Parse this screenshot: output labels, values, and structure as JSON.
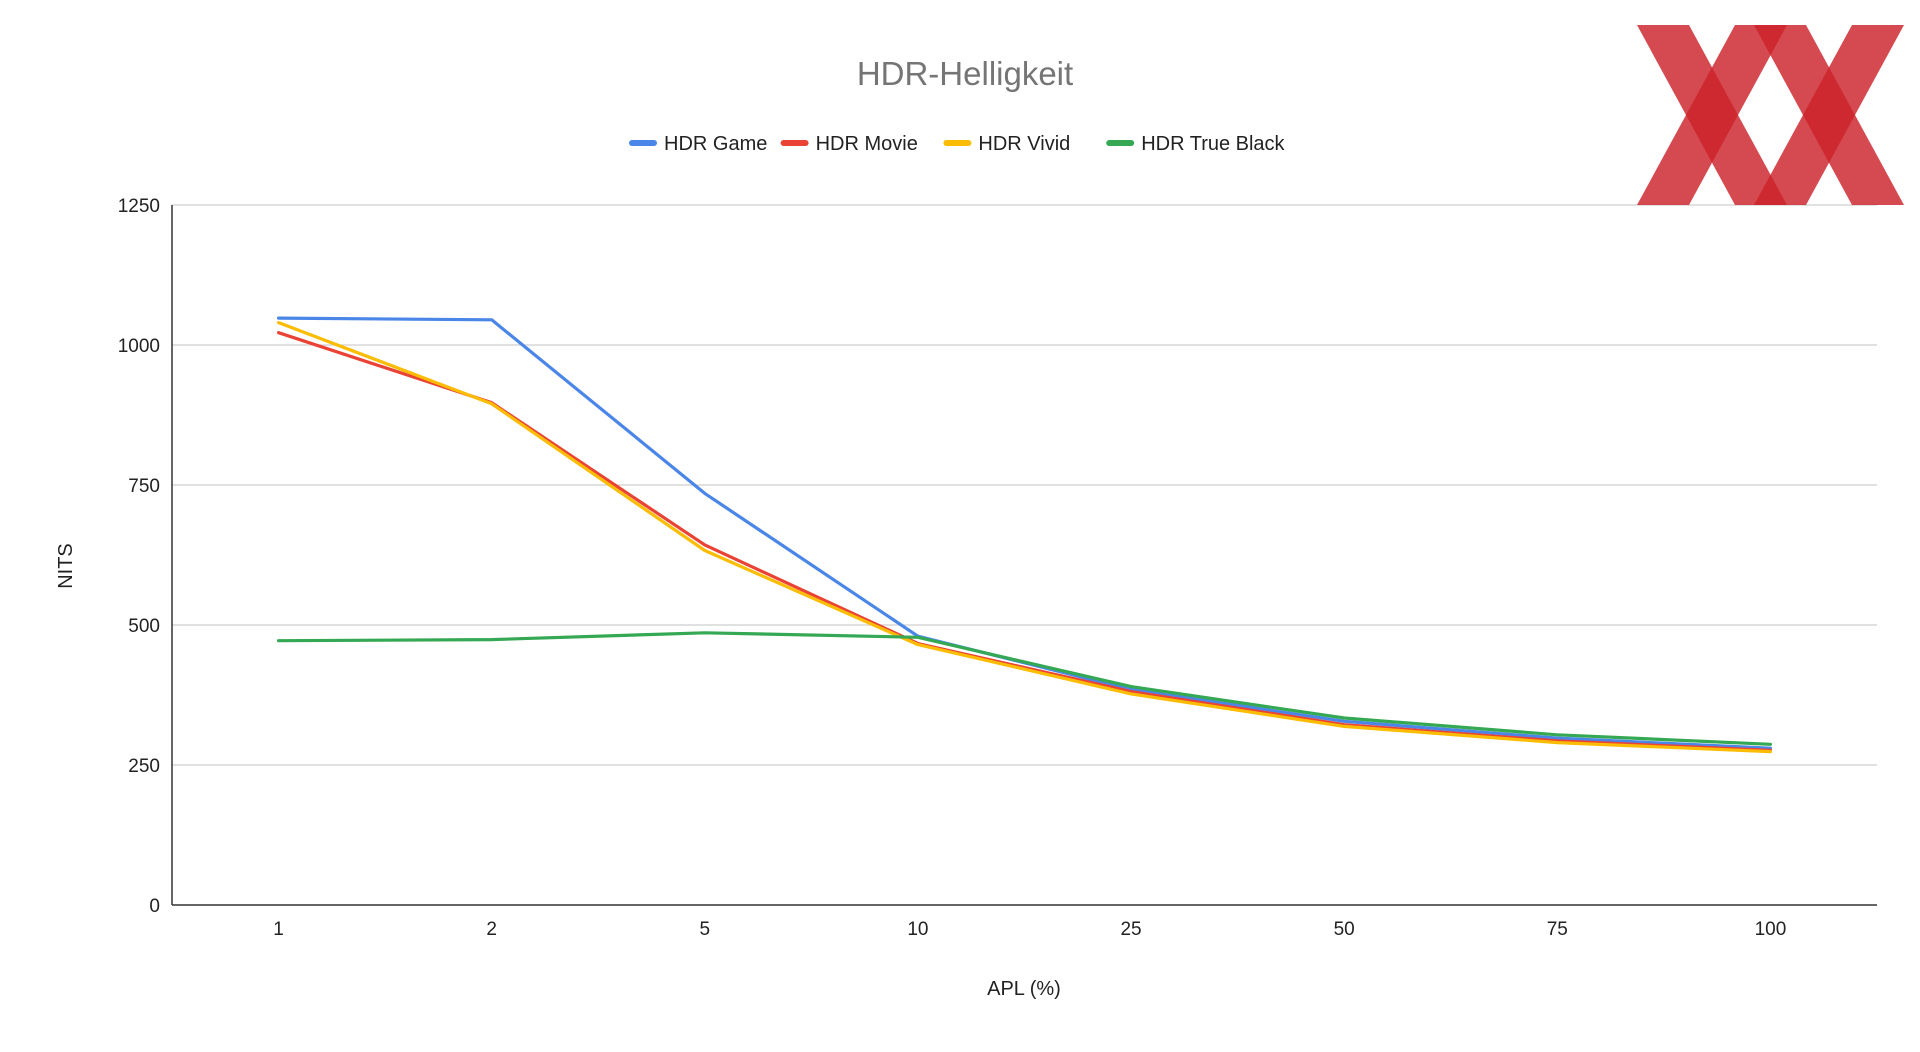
{
  "chart_data": {
    "type": "line",
    "title": "HDR-Helligkeit",
    "xlabel": "APL (%)",
    "ylabel": "NITS",
    "categories": [
      "1",
      "2",
      "5",
      "10",
      "25",
      "50",
      "75",
      "100"
    ],
    "ylim": [
      0,
      1250
    ],
    "yticks": [
      0,
      250,
      500,
      750,
      1000,
      1250
    ],
    "grid": true,
    "legend_position": "top",
    "series": [
      {
        "name": "HDR Game",
        "color": "#4a86e8",
        "values": [
          1048,
          1045,
          735,
          480,
          385,
          328,
          298,
          280
        ]
      },
      {
        "name": "HDR Movie",
        "color": "#ea4335",
        "values": [
          1022,
          897,
          643,
          467,
          381,
          322,
          293,
          276
        ]
      },
      {
        "name": "HDR Vivid",
        "color": "#fbbc04",
        "values": [
          1040,
          895,
          633,
          465,
          377,
          319,
          290,
          274
        ]
      },
      {
        "name": "HDR True Black",
        "color": "#34a853",
        "values": [
          472,
          474,
          486,
          478,
          390,
          334,
          304,
          287
        ]
      }
    ]
  },
  "logo": {
    "icon": "hardwareluxx-xx-logo-icon",
    "color": "#cc2229"
  }
}
